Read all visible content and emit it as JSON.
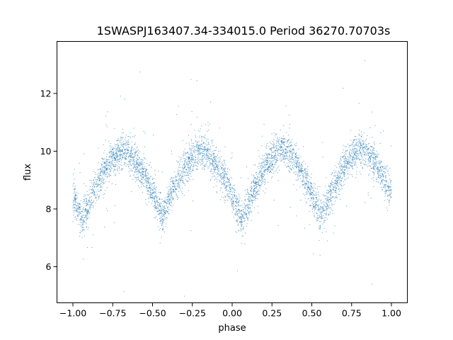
{
  "chart_data": {
    "type": "scatter",
    "title": "1SWASPJ163407.34-334015.0 Period 36270.70703s",
    "xlabel": "phase",
    "ylabel": "flux",
    "xlim": [
      -1.1,
      1.1
    ],
    "ylim": [
      4.75,
      13.8
    ],
    "x_ticks": [
      -1.0,
      -0.75,
      -0.5,
      -0.25,
      0.0,
      0.25,
      0.5,
      0.75,
      1.0
    ],
    "x_tick_labels": [
      "−1.00",
      "−0.75",
      "−0.50",
      "−0.25",
      "0.00",
      "0.25",
      "0.50",
      "0.75",
      "1.00"
    ],
    "y_ticks": [
      6,
      8,
      10,
      12
    ],
    "y_tick_labels": [
      "6",
      "8",
      "10",
      "12"
    ],
    "grid": false,
    "marker_color": "#1f77b4",
    "series": [
      {
        "x_range": [
          -1.0,
          1.0
        ],
        "minima_phase": [
          -0.94,
          -0.44,
          0.06,
          0.56
        ],
        "minima_flux": [
          7.6,
          7.7,
          7.6,
          7.7
        ],
        "maxima_phase": [
          -0.69,
          -0.19,
          0.31,
          0.81
        ],
        "maxima_flux": [
          10.0,
          10.05,
          10.0,
          10.05
        ],
        "scatter_sigma": 0.3
      }
    ]
  }
}
